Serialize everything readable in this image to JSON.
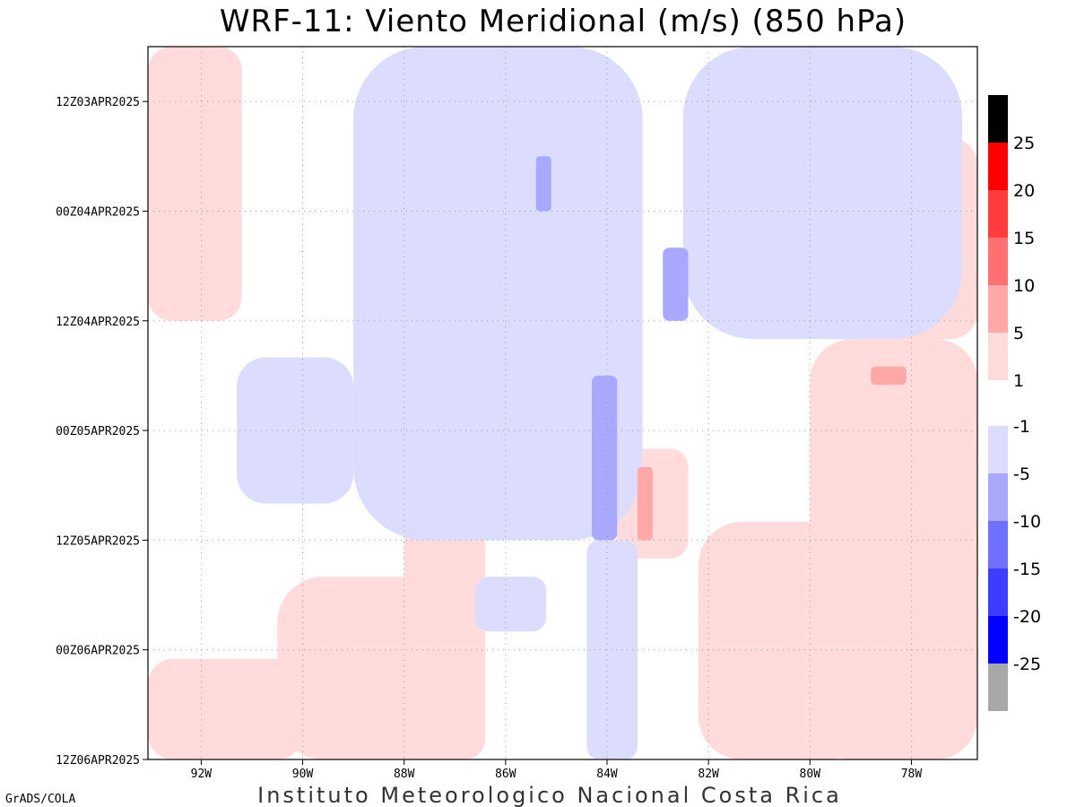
{
  "chart_data": {
    "type": "heatmap",
    "title": "WRF-11: Viento Meridional (m/s) (850 hPa)",
    "footer": "Instituto Meteorologico Nacional Costa Rica",
    "credit": "GrADS/COLA",
    "x_tick_labels": [
      "92W",
      "90W",
      "88W",
      "86W",
      "84W",
      "82W",
      "80W",
      "78W"
    ],
    "x_ticks_lon": [
      -92,
      -90,
      -88,
      -86,
      -84,
      -82,
      -80,
      -78
    ],
    "xlim_lon": [
      -93.05,
      -76.7
    ],
    "y_tick_labels": [
      "12Z03APR2025",
      "00Z04APR2025",
      "12Z04APR2025",
      "00Z05APR2025",
      "12Z05APR2025",
      "00Z06APR2025",
      "12Z06APR2025"
    ],
    "y_ticks_hours": [
      0,
      12,
      24,
      36,
      48,
      60,
      72
    ],
    "ylim_hours": [
      -6,
      72
    ],
    "grid": true,
    "colorbar": {
      "labels": [
        "25",
        "20",
        "15",
        "10",
        "5",
        "1",
        "-1",
        "-5",
        "-10",
        "-15",
        "-20",
        "-25"
      ],
      "positive_colors": [
        "#000000",
        "#ff0000",
        "#ff3d3d",
        "#ff7070",
        "#ffa8a8",
        "#ffdbdb"
      ],
      "negative_colors": [
        "#dcdcff",
        "#a8a8ff",
        "#7070ff",
        "#3d3dff",
        "#0000ff",
        "#a8a8a8"
      ]
    },
    "regions": [
      {
        "level": "1",
        "color": "#ffdbdb",
        "lon": [
          -93.05,
          -91.2
        ],
        "hours": [
          -6,
          24
        ]
      },
      {
        "level": "1",
        "color": "#ffdbdb",
        "lon": [
          -88.0,
          -86.4
        ],
        "hours": [
          44,
          72
        ]
      },
      {
        "level": "1",
        "color": "#ffdbdb",
        "lon": [
          -90.5,
          -86.5
        ],
        "hours": [
          52,
          72
        ]
      },
      {
        "level": "1",
        "color": "#ffdbdb",
        "lon": [
          -93.05,
          -90.0
        ],
        "hours": [
          61,
          72
        ]
      },
      {
        "level": "1",
        "color": "#ffdbdb",
        "lon": [
          -80.0,
          -76.7
        ],
        "hours": [
          26,
          72
        ]
      },
      {
        "level": "1",
        "color": "#ffdbdb",
        "lon": [
          -82.2,
          -78.8
        ],
        "hours": [
          46,
          72
        ]
      },
      {
        "level": "1",
        "color": "#ffdbdb",
        "lon": [
          -78.8,
          -76.7
        ],
        "hours": [
          4,
          26
        ]
      },
      {
        "level": "1",
        "color": "#ffdbdb",
        "lon": [
          -83.8,
          -82.4
        ],
        "hours": [
          38,
          50
        ]
      },
      {
        "level": "-1",
        "color": "#dcdcff",
        "lon": [
          -89.0,
          -83.3
        ],
        "hours": [
          -6,
          48
        ]
      },
      {
        "level": "-1",
        "color": "#dcdcff",
        "lon": [
          -82.5,
          -77.0
        ],
        "hours": [
          -6,
          26
        ]
      },
      {
        "level": "-1",
        "color": "#dcdcff",
        "lon": [
          -91.3,
          -89.0
        ],
        "hours": [
          28,
          44
        ]
      },
      {
        "level": "-1",
        "color": "#dcdcff",
        "lon": [
          -84.4,
          -83.4
        ],
        "hours": [
          48,
          72
        ]
      },
      {
        "level": "-1",
        "color": "#dcdcff",
        "lon": [
          -86.6,
          -85.2
        ],
        "hours": [
          52,
          58
        ]
      },
      {
        "level": "-5",
        "color": "#a8a8ff",
        "lon": [
          -84.3,
          -83.8
        ],
        "hours": [
          30,
          48
        ]
      },
      {
        "level": "-5",
        "color": "#a8a8ff",
        "lon": [
          -82.9,
          -82.4
        ],
        "hours": [
          16,
          24
        ]
      },
      {
        "level": "-5",
        "color": "#a8a8ff",
        "lon": [
          -85.4,
          -85.1
        ],
        "hours": [
          6,
          12
        ]
      },
      {
        "level": "5",
        "color": "#ffa8a8",
        "lon": [
          -83.4,
          -83.1
        ],
        "hours": [
          40,
          48
        ]
      },
      {
        "level": "5",
        "color": "#ffa8a8",
        "lon": [
          -78.8,
          -78.1
        ],
        "hours": [
          29,
          31
        ]
      }
    ]
  }
}
